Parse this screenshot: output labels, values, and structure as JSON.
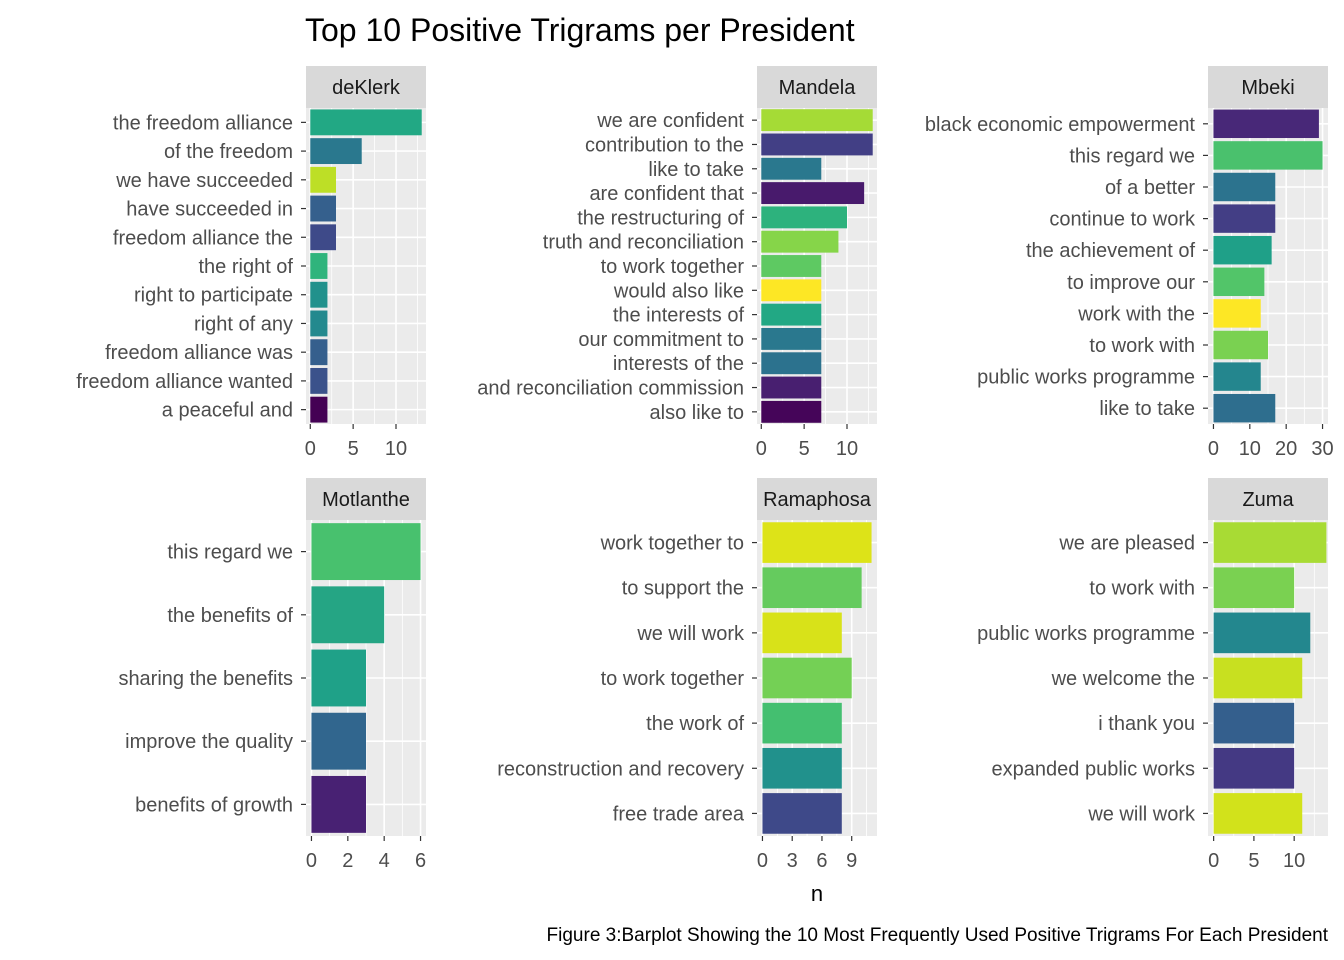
{
  "chart_data": {
    "type": "bar",
    "orientation": "horizontal",
    "layout": "facet-grid 2x3",
    "title": "Top 10 Positive Trigrams per President",
    "xlabel": "n",
    "ylabel": "",
    "caption": "Figure 3:Barplot Showing the 10 Most Frequently Used Positive Trigrams For Each President",
    "grid": true,
    "legend": "none",
    "panels": [
      {
        "name": "deKlerk",
        "xlim": [
          -0.5,
          13.5
        ],
        "ticks": [
          0,
          5,
          10
        ],
        "categories": [
          "the freedom alliance",
          "of the freedom",
          "we have succeeded",
          "have succeeded in",
          "freedom alliance the",
          "the right of",
          "right to participate",
          "right of any",
          "freedom alliance was",
          "freedom alliance wanted",
          "a peaceful and"
        ],
        "values": [
          13,
          6,
          3,
          3,
          3,
          2,
          2,
          2,
          2,
          2,
          2
        ],
        "colors": [
          "#22a884",
          "#2a788e",
          "#bddf26",
          "#35608d",
          "#3e4a89",
          "#2fb47c",
          "#21918c",
          "#23898e",
          "#355f8d",
          "#3b528b",
          "#440154"
        ]
      },
      {
        "name": "Mandela",
        "xlim": [
          -0.5,
          13.5
        ],
        "ticks": [
          0,
          5,
          10
        ],
        "categories": [
          "we are confident",
          "contribution to the",
          "like to take",
          "are confident that",
          "the restructuring of",
          "truth and reconciliation",
          "to work together",
          "would also like",
          "the interests of",
          "our commitment to",
          "interests of the",
          "and reconciliation commission",
          "also like to"
        ],
        "values": [
          13,
          13,
          7,
          12,
          10,
          9,
          7,
          7,
          7,
          7,
          7,
          7,
          7
        ],
        "colors": [
          "#a5db36",
          "#423f85",
          "#2a788e",
          "#481a6c",
          "#2db27d",
          "#86d549",
          "#5ec962",
          "#fde725",
          "#22a884",
          "#2a788e",
          "#2c728e",
          "#481f70",
          "#450559"
        ]
      },
      {
        "name": "Mbeki",
        "xlim": [
          -1.5,
          31.5
        ],
        "ticks": [
          0,
          10,
          20,
          30
        ],
        "categories": [
          "black economic empowerment",
          "this regard we",
          "of a better",
          "continue to work",
          "the achievement of",
          "to improve our",
          "work with the",
          "to work with",
          "public works programme",
          "like to take"
        ],
        "values": [
          29,
          30,
          17,
          17,
          16,
          14,
          13,
          15,
          13,
          17
        ],
        "colors": [
          "#482878",
          "#4ac16d",
          "#2c738e",
          "#433e85",
          "#1fa088",
          "#52c569",
          "#fde725",
          "#7ad151",
          "#24868e",
          "#2e6e8e"
        ]
      },
      {
        "name": "Motlanthe",
        "xlim": [
          -0.3,
          6.3
        ],
        "ticks": [
          0,
          2,
          4,
          6
        ],
        "categories": [
          "this regard we",
          "the benefits of",
          "sharing the benefits",
          "improve the quality",
          "benefits of growth"
        ],
        "values": [
          6,
          4,
          3,
          3,
          3
        ],
        "colors": [
          "#48c16e",
          "#25a584",
          "#1fa188",
          "#31668e",
          "#482173"
        ]
      },
      {
        "name": "Ramaphosa",
        "xlim": [
          -0.55,
          11.55
        ],
        "ticks": [
          0,
          3,
          6,
          9
        ],
        "categories": [
          "work together to",
          "to support the",
          "we will work",
          "to work together",
          "the work of",
          "reconstruction and recovery",
          "free trade area"
        ],
        "values": [
          11,
          10,
          8,
          9,
          8,
          8,
          8
        ],
        "colors": [
          "#dde318",
          "#65cb5e",
          "#d8e219",
          "#74d055",
          "#44bf70",
          "#21918c",
          "#3e4989"
        ]
      },
      {
        "name": "Zuma",
        "xlim": [
          -0.7,
          14.2
        ],
        "ticks": [
          0,
          5,
          10
        ],
        "categories": [
          "we are pleased",
          "to work with",
          "public works programme",
          "we welcome the",
          "i thank you",
          "expanded public works",
          "we will work"
        ],
        "values": [
          14,
          10,
          12,
          11,
          10,
          10,
          11
        ],
        "colors": [
          "#a8db34",
          "#7ad151",
          "#23878e",
          "#c8e020",
          "#345f8d",
          "#443983",
          "#d2e21b"
        ]
      }
    ]
  }
}
